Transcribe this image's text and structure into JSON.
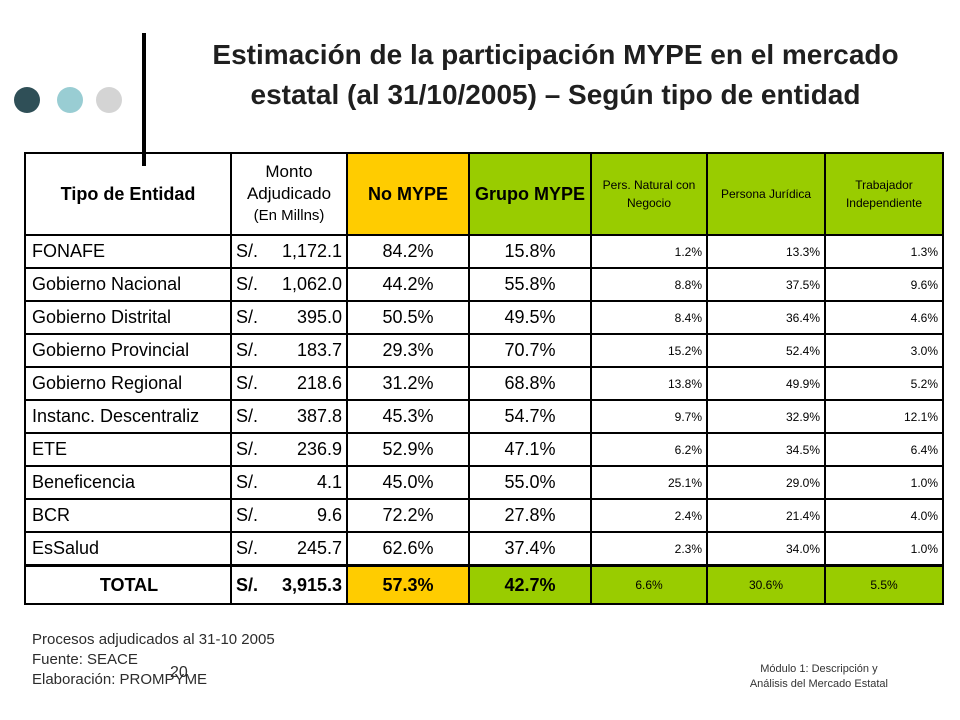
{
  "title": {
    "line1": "Estimación de la participación MYPE en el mercado",
    "line2": "estatal (al 31/10/2005) – Según tipo de entidad"
  },
  "table": {
    "headers": {
      "tipo": "Tipo de Entidad",
      "monto_line1": "Monto",
      "monto_line2": "Adjudicado",
      "monto_line3": "(En Millns)",
      "no_mype": "No MYPE",
      "grupo_mype": "Grupo MYPE",
      "pers_natural": "Pers. Natural con Negocio",
      "persona_juridica": "Persona Jurídica",
      "trabajador": "Trabajador Independiente"
    },
    "rows": [
      {
        "entidad": "FONAFE",
        "moneda": "S/.",
        "monto": "1,172.1",
        "no_mype": "84.2%",
        "grupo_mype": "15.8%",
        "pers_natural": "1.2%",
        "persona_juridica": "13.3%",
        "trabajador": "1.3%"
      },
      {
        "entidad": "Gobierno Nacional",
        "moneda": "S/.",
        "monto": "1,062.0",
        "no_mype": "44.2%",
        "grupo_mype": "55.8%",
        "pers_natural": "8.8%",
        "persona_juridica": "37.5%",
        "trabajador": "9.6%"
      },
      {
        "entidad": "Gobierno Distrital",
        "moneda": "S/.",
        "monto": "395.0",
        "no_mype": "50.5%",
        "grupo_mype": "49.5%",
        "pers_natural": "8.4%",
        "persona_juridica": "36.4%",
        "trabajador": "4.6%"
      },
      {
        "entidad": "Gobierno Provincial",
        "moneda": "S/.",
        "monto": "183.7",
        "no_mype": "29.3%",
        "grupo_mype": "70.7%",
        "pers_natural": "15.2%",
        "persona_juridica": "52.4%",
        "trabajador": "3.0%"
      },
      {
        "entidad": "Gobierno Regional",
        "moneda": "S/.",
        "monto": "218.6",
        "no_mype": "31.2%",
        "grupo_mype": "68.8%",
        "pers_natural": "13.8%",
        "persona_juridica": "49.9%",
        "trabajador": "5.2%"
      },
      {
        "entidad": "Instanc. Descentraliz",
        "moneda": "S/.",
        "monto": "387.8",
        "no_mype": "45.3%",
        "grupo_mype": "54.7%",
        "pers_natural": "9.7%",
        "persona_juridica": "32.9%",
        "trabajador": "12.1%"
      },
      {
        "entidad": "ETE",
        "moneda": "S/.",
        "monto": "236.9",
        "no_mype": "52.9%",
        "grupo_mype": "47.1%",
        "pers_natural": "6.2%",
        "persona_juridica": "34.5%",
        "trabajador": "6.4%"
      },
      {
        "entidad": "Beneficencia",
        "moneda": "S/.",
        "monto": "4.1",
        "no_mype": "45.0%",
        "grupo_mype": "55.0%",
        "pers_natural": "25.1%",
        "persona_juridica": "29.0%",
        "trabajador": "1.0%"
      },
      {
        "entidad": "BCR",
        "moneda": "S/.",
        "monto": "9.6",
        "no_mype": "72.2%",
        "grupo_mype": "27.8%",
        "pers_natural": "2.4%",
        "persona_juridica": "21.4%",
        "trabajador": "4.0%"
      },
      {
        "entidad": "EsSalud",
        "moneda": "S/.",
        "monto": "245.7",
        "no_mype": "62.6%",
        "grupo_mype": "37.4%",
        "pers_natural": "2.3%",
        "persona_juridica": "34.0%",
        "trabajador": "1.0%"
      }
    ],
    "total": {
      "entidad": "TOTAL",
      "moneda": "S/.",
      "monto": "3,915.3",
      "no_mype": "57.3%",
      "grupo_mype": "42.7%",
      "pers_natural": "6.6%",
      "persona_juridica": "30.6%",
      "trabajador": "5.5%"
    }
  },
  "footer": {
    "line1": "Procesos adjudicados al 31-10 2005",
    "line2": "Fuente: SEACE",
    "line3": "Elaboración: PROMPYME",
    "page_number": "20",
    "module_line1": "Módulo 1: Descripción y",
    "module_line2": "Análisis del Mercado Estatal"
  },
  "colors": {
    "no_mype_bg": "#ffcc00",
    "grupo_mype_bg": "#99cc00",
    "dot_dark": "#2f4f57",
    "dot_teal": "#99cdd3",
    "dot_gray": "#d4d4d4"
  }
}
